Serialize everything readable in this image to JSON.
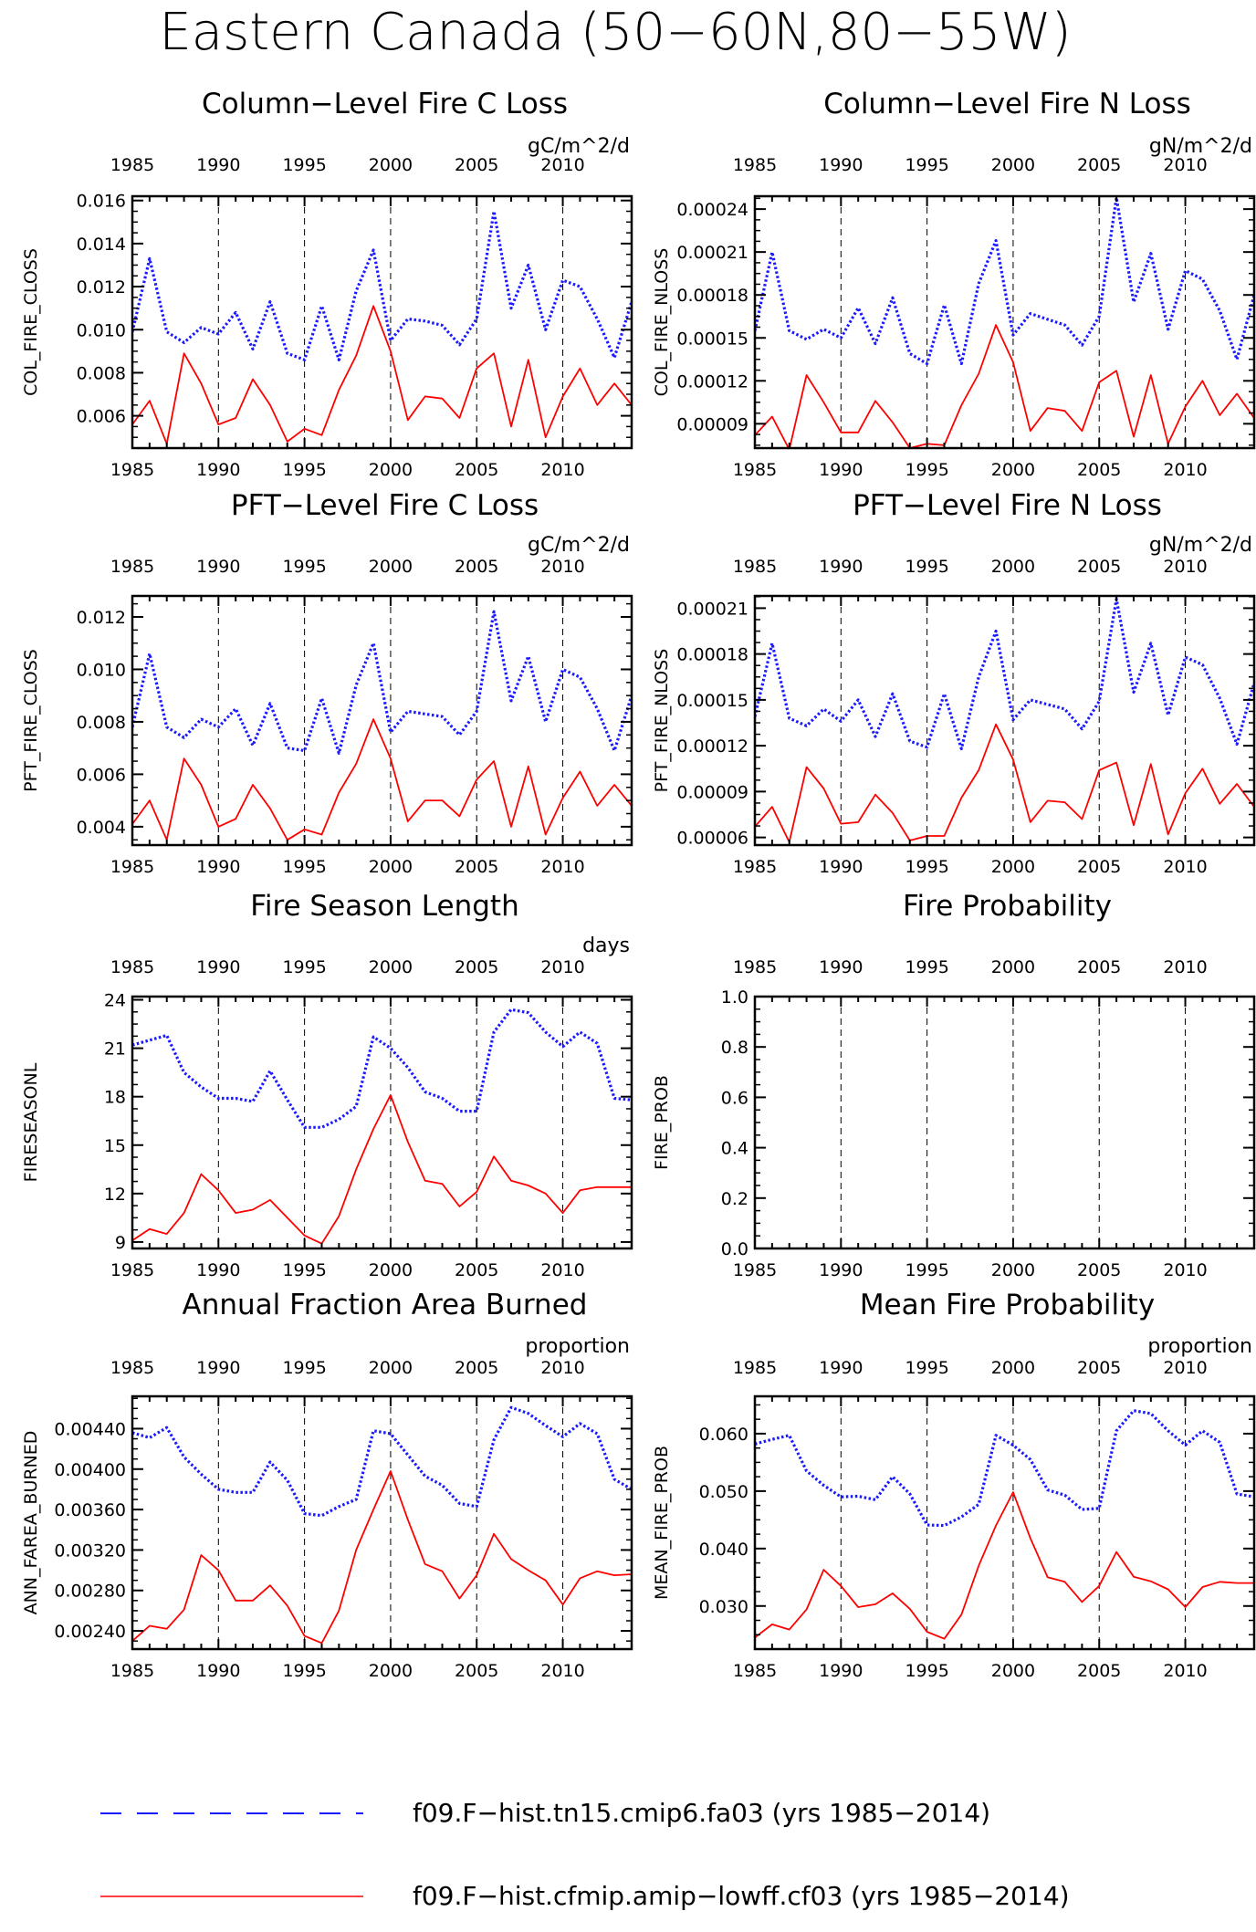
{
  "figure": {
    "title": "Eastern Canada (50−60N,80−55W)"
  },
  "colors": {
    "run1": "#1a1aff",
    "run2": "#ff0000",
    "axis": "#000000"
  },
  "legend": [
    {
      "label": "f09.F−hist.tn15.cmip6.fa03 (yrs 1985−2014)",
      "color": "#1a1aff",
      "style": "dashed"
    },
    {
      "label": "f09.F−hist.cfmip.amip−lowff.cf03 (yrs 1985−2014)",
      "color": "#ff0000",
      "style": "solid"
    }
  ],
  "chart_data": [
    {
      "type": "line",
      "title": "Column−Level Fire C Loss",
      "units": "gC/m^2/d",
      "ylabel": "COL_FIRE_CLOSS",
      "xlim": [
        1985,
        2014
      ],
      "ylim": [
        0.0045,
        0.0162
      ],
      "yticks": [
        0.006,
        0.008,
        0.01,
        0.012,
        0.014,
        0.016
      ],
      "ytick_labels": [
        "0.006",
        "0.008",
        "0.010",
        "0.012",
        "0.014",
        "0.016"
      ],
      "xticks": [
        1985,
        1990,
        1995,
        2000,
        2005,
        2010
      ],
      "x": [
        1985,
        1986,
        1987,
        1988,
        1989,
        1990,
        1991,
        1992,
        1993,
        1994,
        1995,
        1996,
        1997,
        1998,
        1999,
        2000,
        2001,
        2002,
        2003,
        2004,
        2005,
        2006,
        2007,
        2008,
        2009,
        2010,
        2011,
        2012,
        2013,
        2014
      ],
      "series": [
        {
          "values": [
            0.0099,
            0.0133,
            0.0099,
            0.0094,
            0.0101,
            0.0098,
            0.0108,
            0.0091,
            0.0113,
            0.0089,
            0.0086,
            0.0111,
            0.0086,
            0.0118,
            0.0137,
            0.0095,
            0.0105,
            0.0104,
            0.0102,
            0.0093,
            0.0105,
            0.0155,
            0.011,
            0.013,
            0.01,
            0.0123,
            0.012,
            0.0105,
            0.0087,
            0.0113
          ]
        },
        {
          "values": [
            0.0056,
            0.0067,
            0.0047,
            0.0089,
            0.0075,
            0.0056,
            0.0059,
            0.0077,
            0.0065,
            0.0048,
            0.0054,
            0.0051,
            0.0072,
            0.0088,
            0.0111,
            0.009,
            0.0058,
            0.0069,
            0.0068,
            0.0059,
            0.0082,
            0.0089,
            0.0055,
            0.0086,
            0.005,
            0.0069,
            0.0082,
            0.0065,
            0.0075,
            0.0065
          ]
        }
      ]
    },
    {
      "type": "line",
      "title": "Column−Level Fire N Loss",
      "units": "gN/m^2/d",
      "ylabel": "COL_FIRE_NLOSS",
      "xlim": [
        1985,
        2014
      ],
      "ylim": [
        7.3e-05,
        0.000249
      ],
      "yticks": [
        9e-05,
        0.00012,
        0.00015,
        0.00018,
        0.00021,
        0.00024
      ],
      "ytick_labels": [
        "0.00009",
        "0.00012",
        "0.00015",
        "0.00018",
        "0.00021",
        "0.00024"
      ],
      "xticks": [
        1985,
        1990,
        1995,
        2000,
        2005,
        2010
      ],
      "x": [
        1985,
        1986,
        1987,
        1988,
        1989,
        1990,
        1991,
        1992,
        1993,
        1994,
        1995,
        1996,
        1997,
        1998,
        1999,
        2000,
        2001,
        2002,
        2003,
        2004,
        2005,
        2006,
        2007,
        2008,
        2009,
        2010,
        2011,
        2012,
        2013,
        2014
      ],
      "series": [
        {
          "values": [
            0.000155,
            0.00021,
            0.000155,
            0.000149,
            0.000156,
            0.00015,
            0.000171,
            0.000146,
            0.000178,
            0.000139,
            0.000132,
            0.000173,
            0.000132,
            0.000188,
            0.000218,
            0.000152,
            0.000167,
            0.000163,
            0.000159,
            0.000145,
            0.000165,
            0.000248,
            0.000175,
            0.000209,
            0.000156,
            0.000197,
            0.000191,
            0.000169,
            0.000135,
            0.00018
          ]
        },
        {
          "values": [
            8.2e-05,
            9.5e-05,
            7.2e-05,
            0.000124,
            0.000105,
            8.4e-05,
            8.4e-05,
            0.000106,
            9.1e-05,
            7.3e-05,
            7.6e-05,
            7.5e-05,
            0.000103,
            0.000125,
            0.000159,
            0.000133,
            8.5e-05,
            0.000101,
            9.9e-05,
            8.5e-05,
            0.000119,
            0.000127,
            8.1e-05,
            0.000124,
            7.6e-05,
            0.000102,
            0.00012,
            9.6e-05,
            0.000111,
            9.4e-05
          ]
        }
      ]
    },
    {
      "type": "line",
      "title": "PFT−Level Fire C Loss",
      "units": "gC/m^2/d",
      "ylabel": "PFT_FIRE_CLOSS",
      "xlim": [
        1985,
        2014
      ],
      "ylim": [
        0.0033,
        0.0128
      ],
      "yticks": [
        0.004,
        0.006,
        0.008,
        0.01,
        0.012
      ],
      "ytick_labels": [
        "0.004",
        "0.006",
        "0.008",
        "0.010",
        "0.012"
      ],
      "xticks": [
        1985,
        1990,
        1995,
        2000,
        2005,
        2010
      ],
      "x": [
        1985,
        1986,
        1987,
        1988,
        1989,
        1990,
        1991,
        1992,
        1993,
        1994,
        1995,
        1996,
        1997,
        1998,
        1999,
        2000,
        2001,
        2002,
        2003,
        2004,
        2005,
        2006,
        2007,
        2008,
        2009,
        2010,
        2011,
        2012,
        2013,
        2014
      ],
      "series": [
        {
          "values": [
            0.0078,
            0.0106,
            0.0078,
            0.0074,
            0.0081,
            0.0078,
            0.0085,
            0.0071,
            0.0087,
            0.007,
            0.0069,
            0.0089,
            0.0068,
            0.0094,
            0.011,
            0.0076,
            0.0084,
            0.0083,
            0.0082,
            0.0075,
            0.0084,
            0.0122,
            0.0088,
            0.0105,
            0.008,
            0.01,
            0.0097,
            0.0085,
            0.0069,
            0.009
          ]
        },
        {
          "values": [
            0.0041,
            0.005,
            0.0035,
            0.0066,
            0.0056,
            0.004,
            0.0043,
            0.0056,
            0.0047,
            0.0035,
            0.0039,
            0.0037,
            0.0053,
            0.0064,
            0.0081,
            0.0066,
            0.0042,
            0.005,
            0.005,
            0.0044,
            0.0058,
            0.0065,
            0.004,
            0.0063,
            0.0037,
            0.0051,
            0.0061,
            0.0048,
            0.0056,
            0.0048
          ]
        }
      ]
    },
    {
      "type": "line",
      "title": "PFT−Level Fire N Loss",
      "units": "gN/m^2/d",
      "ylabel": "PFT_FIRE_NLOSS",
      "xlim": [
        1985,
        2014
      ],
      "ylim": [
        5.5e-05,
        0.000218
      ],
      "yticks": [
        6e-05,
        9e-05,
        0.00012,
        0.00015,
        0.00018,
        0.00021
      ],
      "ytick_labels": [
        "0.00006",
        "0.00009",
        "0.00012",
        "0.00015",
        "0.00018",
        "0.00021"
      ],
      "xticks": [
        1985,
        1990,
        1995,
        2000,
        2005,
        2010
      ],
      "x": [
        1985,
        1986,
        1987,
        1988,
        1989,
        1990,
        1991,
        1992,
        1993,
        1994,
        1995,
        1996,
        1997,
        1998,
        1999,
        2000,
        2001,
        2002,
        2003,
        2004,
        2005,
        2006,
        2007,
        2008,
        2009,
        2010,
        2011,
        2012,
        2013,
        2014
      ],
      "series": [
        {
          "values": [
            0.000139,
            0.000187,
            0.000138,
            0.000133,
            0.000144,
            0.000136,
            0.00015,
            0.000126,
            0.000154,
            0.000123,
            0.000119,
            0.000154,
            0.000118,
            0.000165,
            0.000195,
            0.000137,
            0.00015,
            0.000147,
            0.000144,
            0.000131,
            0.000149,
            0.000216,
            0.000155,
            0.000187,
            0.00014,
            0.000178,
            0.000173,
            0.000151,
            0.000121,
            0.000161
          ]
        },
        {
          "values": [
            6.7e-05,
            8e-05,
            5.7e-05,
            0.000106,
            9.2e-05,
            6.9e-05,
            7e-05,
            8.8e-05,
            7.6e-05,
            5.8e-05,
            6.1e-05,
            6.1e-05,
            8.6e-05,
            0.000104,
            0.000134,
            0.000111,
            7e-05,
            8.4e-05,
            8.3e-05,
            7.2e-05,
            0.000104,
            0.000109,
            6.8e-05,
            0.000108,
            6.2e-05,
            8.9e-05,
            0.000105,
            8.2e-05,
            9.5e-05,
            8e-05
          ]
        }
      ]
    },
    {
      "type": "line",
      "title": "Fire Season Length",
      "units": "days",
      "ylabel": "FIRESEASONL",
      "xlim": [
        1985,
        2014
      ],
      "ylim": [
        8.6,
        24.2
      ],
      "yticks": [
        9,
        12,
        15,
        18,
        21,
        24
      ],
      "ytick_labels": [
        "9",
        "12",
        "15",
        "18",
        "21",
        "24"
      ],
      "xticks": [
        1985,
        1990,
        1995,
        2000,
        2005,
        2010
      ],
      "x": [
        1985,
        1986,
        1987,
        1988,
        1989,
        1990,
        1991,
        1992,
        1993,
        1994,
        1995,
        1996,
        1997,
        1998,
        1999,
        2000,
        2001,
        2002,
        2003,
        2004,
        2005,
        2006,
        2007,
        2008,
        2009,
        2010,
        2011,
        2012,
        2013,
        2014
      ],
      "series": [
        {
          "values": [
            21.2,
            21.5,
            21.8,
            19.5,
            18.6,
            17.9,
            17.9,
            17.7,
            19.6,
            17.8,
            16.1,
            16.1,
            16.6,
            17.4,
            21.7,
            21.0,
            19.8,
            18.3,
            17.9,
            17.1,
            17.1,
            22.0,
            23.4,
            23.2,
            22.0,
            21.1,
            22.0,
            21.3,
            17.9,
            17.8
          ]
        },
        {
          "values": [
            9.1,
            9.8,
            9.5,
            10.8,
            13.2,
            12.2,
            10.8,
            11.0,
            11.6,
            10.5,
            9.4,
            8.9,
            10.6,
            13.5,
            16.0,
            18.1,
            15.2,
            12.8,
            12.6,
            11.2,
            12.1,
            14.3,
            12.8,
            12.5,
            12.0,
            10.8,
            12.2,
            12.4,
            12.4,
            12.4
          ]
        }
      ]
    },
    {
      "type": "line",
      "title": "Fire Probability",
      "units": "",
      "ylabel": "FIRE_PROB",
      "xlim": [
        1985,
        2014
      ],
      "ylim": [
        0.0,
        1.0
      ],
      "yticks": [
        0.0,
        0.2,
        0.4,
        0.6,
        0.8,
        1.0
      ],
      "ytick_labels": [
        "0.0",
        "0.2",
        "0.4",
        "0.6",
        "0.8",
        "1.0"
      ],
      "xticks": [
        1985,
        1990,
        1995,
        2000,
        2005,
        2010
      ],
      "x": [],
      "series": []
    },
    {
      "type": "line",
      "title": "Annual Fraction Area Burned",
      "units": "proportion",
      "ylabel": "ANN_FAREA_BURNED",
      "xlim": [
        1985,
        2014
      ],
      "ylim": [
        0.00222,
        0.00472
      ],
      "yticks": [
        0.0024,
        0.0028,
        0.0032,
        0.0036,
        0.004,
        0.0044
      ],
      "ytick_labels": [
        "0.00240",
        "0.00280",
        "0.00320",
        "0.00360",
        "0.00400",
        "0.00440"
      ],
      "xticks": [
        1985,
        1990,
        1995,
        2000,
        2005,
        2010
      ],
      "x": [
        1985,
        1986,
        1987,
        1988,
        1989,
        1990,
        1991,
        1992,
        1993,
        1994,
        1995,
        1996,
        1997,
        1998,
        1999,
        2000,
        2001,
        2002,
        2003,
        2004,
        2005,
        2006,
        2007,
        2008,
        2009,
        2010,
        2011,
        2012,
        2013,
        2014
      ],
      "series": [
        {
          "values": [
            0.00436,
            0.00431,
            0.00441,
            0.00412,
            0.00395,
            0.0038,
            0.00377,
            0.00377,
            0.00407,
            0.00389,
            0.00356,
            0.00354,
            0.00363,
            0.0037,
            0.00438,
            0.00435,
            0.00414,
            0.00393,
            0.00384,
            0.00366,
            0.00363,
            0.00429,
            0.00461,
            0.00455,
            0.00443,
            0.00432,
            0.00445,
            0.00435,
            0.0039,
            0.0038
          ]
        },
        {
          "values": [
            0.0023,
            0.00245,
            0.00242,
            0.00261,
            0.00315,
            0.003,
            0.0027,
            0.0027,
            0.00285,
            0.00265,
            0.00235,
            0.00228,
            0.0026,
            0.0032,
            0.0036,
            0.00398,
            0.0035,
            0.00306,
            0.00299,
            0.00272,
            0.00295,
            0.00336,
            0.00311,
            0.003,
            0.0029,
            0.00266,
            0.00292,
            0.00299,
            0.00295,
            0.00296
          ]
        }
      ]
    },
    {
      "type": "line",
      "title": "Mean Fire Probability",
      "units": "proportion",
      "ylabel": "MEAN_FIRE_PROB",
      "xlim": [
        1985,
        2014
      ],
      "ylim": [
        0.0225,
        0.0665
      ],
      "yticks": [
        0.03,
        0.04,
        0.05,
        0.06
      ],
      "ytick_labels": [
        "0.030",
        "0.040",
        "0.050",
        "0.060"
      ],
      "xticks": [
        1985,
        1990,
        1995,
        2000,
        2005,
        2010
      ],
      "x": [
        1985,
        1986,
        1987,
        1988,
        1989,
        1990,
        1991,
        1992,
        1993,
        1994,
        1995,
        1996,
        1997,
        1998,
        1999,
        2000,
        2001,
        2002,
        2003,
        2004,
        2005,
        2006,
        2007,
        2008,
        2009,
        2010,
        2011,
        2012,
        2013,
        2014
      ],
      "series": [
        {
          "values": [
            0.0582,
            0.059,
            0.0597,
            0.0535,
            0.051,
            0.049,
            0.0491,
            0.0485,
            0.0525,
            0.0495,
            0.0441,
            0.044,
            0.0455,
            0.0477,
            0.0597,
            0.058,
            0.0555,
            0.0502,
            0.0493,
            0.0468,
            0.047,
            0.0605,
            0.064,
            0.0635,
            0.0605,
            0.058,
            0.0605,
            0.0585,
            0.0495,
            0.049
          ]
        },
        {
          "values": [
            0.0245,
            0.0268,
            0.0259,
            0.0294,
            0.0363,
            0.0335,
            0.0298,
            0.0303,
            0.0322,
            0.0295,
            0.0255,
            0.0243,
            0.0285,
            0.037,
            0.044,
            0.0498,
            0.0418,
            0.035,
            0.0342,
            0.0307,
            0.0335,
            0.0394,
            0.0351,
            0.0343,
            0.0329,
            0.0298,
            0.0333,
            0.0342,
            0.034,
            0.034
          ]
        }
      ]
    }
  ]
}
